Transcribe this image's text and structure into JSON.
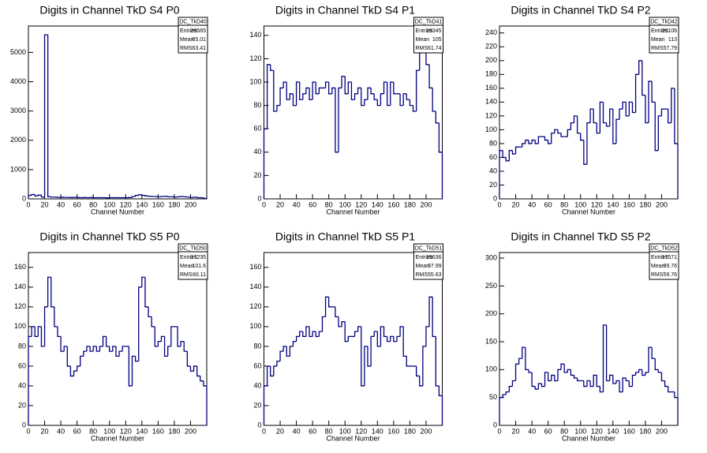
{
  "chart_data": [
    {
      "type": "histogram",
      "title": "Digits in Channel TkD S4 P0",
      "xlabel": "Channel Number",
      "color": "#000080",
      "bins": [
        0,
        4,
        8,
        12,
        16,
        20,
        24,
        28,
        32,
        36,
        40,
        44,
        48,
        52,
        56,
        60,
        64,
        68,
        72,
        76,
        80,
        84,
        88,
        92,
        96,
        100,
        104,
        108,
        112,
        116,
        120,
        124,
        128,
        132,
        136,
        140,
        144,
        148,
        152,
        156,
        160,
        164,
        168,
        172,
        176,
        180,
        184,
        188,
        192,
        196,
        200,
        204,
        208,
        212,
        216,
        220
      ],
      "counts": [
        120,
        150,
        100,
        130,
        60,
        5600,
        70,
        60,
        60,
        50,
        55,
        50,
        50,
        45,
        50,
        45,
        40,
        45,
        40,
        45,
        40,
        40,
        40,
        40,
        35,
        40,
        40,
        40,
        40,
        40,
        40,
        45,
        80,
        120,
        140,
        120,
        100,
        90,
        80,
        80,
        70,
        80,
        90,
        70,
        70,
        60,
        70,
        80,
        70,
        60,
        50,
        60,
        40,
        40,
        20
      ],
      "xlim": [
        0,
        220
      ],
      "ylim": [
        0,
        5900
      ],
      "xticks": [
        0,
        20,
        40,
        60,
        80,
        100,
        120,
        140,
        160,
        180,
        200
      ],
      "yticks": [
        0,
        1000,
        2000,
        3000,
        4000,
        5000
      ],
      "stats": {
        "name": "DC_TkD40",
        "rows": [
          {
            "label": "Entries",
            "value": 26565
          },
          {
            "label": "Mean",
            "value": 65.01
          },
          {
            "label": "RMS",
            "value": 63.41
          }
        ]
      }
    },
    {
      "type": "histogram",
      "title": "Digits in Channel TkD S4 P1",
      "xlabel": "Channel Number",
      "color": "#000080",
      "bins": [
        0,
        4,
        8,
        12,
        16,
        20,
        24,
        28,
        32,
        36,
        40,
        44,
        48,
        52,
        56,
        60,
        64,
        68,
        72,
        76,
        80,
        84,
        88,
        92,
        96,
        100,
        104,
        108,
        112,
        116,
        120,
        124,
        128,
        132,
        136,
        140,
        144,
        148,
        152,
        156,
        160,
        164,
        168,
        172,
        176,
        180,
        184,
        188,
        192,
        196,
        200,
        204,
        208,
        212,
        216,
        220
      ],
      "counts": [
        60,
        115,
        110,
        75,
        80,
        95,
        100,
        85,
        90,
        80,
        100,
        85,
        90,
        95,
        85,
        100,
        90,
        95,
        95,
        100,
        90,
        95,
        40,
        95,
        105,
        90,
        100,
        85,
        90,
        95,
        80,
        85,
        95,
        90,
        85,
        80,
        90,
        100,
        80,
        100,
        90,
        90,
        80,
        90,
        85,
        80,
        75,
        110,
        125,
        130,
        115,
        95,
        75,
        65,
        40
      ],
      "xlim": [
        0,
        220
      ],
      "ylim": [
        0,
        148
      ],
      "xticks": [
        0,
        20,
        40,
        60,
        80,
        100,
        120,
        140,
        160,
        180,
        200
      ],
      "yticks": [
        0,
        20,
        40,
        60,
        80,
        100,
        120,
        140
      ],
      "stats": {
        "name": "DC_TkD41",
        "rows": [
          {
            "label": "Entries",
            "value": 18345
          },
          {
            "label": "Mean",
            "value": 105
          },
          {
            "label": "RMS",
            "value": 61.74
          }
        ]
      }
    },
    {
      "type": "histogram",
      "title": "Digits in Channel TkD S4 P2",
      "xlabel": "Channel Number",
      "color": "#000080",
      "bins": [
        0,
        4,
        8,
        12,
        16,
        20,
        24,
        28,
        32,
        36,
        40,
        44,
        48,
        52,
        56,
        60,
        64,
        68,
        72,
        76,
        80,
        84,
        88,
        92,
        96,
        100,
        104,
        108,
        112,
        116,
        120,
        124,
        128,
        132,
        136,
        140,
        144,
        148,
        152,
        156,
        160,
        164,
        168,
        172,
        176,
        180,
        184,
        188,
        192,
        196,
        200,
        204,
        208,
        212,
        216,
        220
      ],
      "counts": [
        70,
        60,
        55,
        70,
        65,
        75,
        75,
        80,
        85,
        80,
        85,
        80,
        90,
        90,
        85,
        80,
        95,
        100,
        95,
        90,
        90,
        100,
        110,
        120,
        95,
        85,
        50,
        110,
        130,
        110,
        95,
        140,
        110,
        105,
        130,
        80,
        115,
        130,
        140,
        120,
        140,
        125,
        180,
        200,
        150,
        110,
        170,
        140,
        70,
        120,
        130,
        130,
        110,
        160,
        80
      ],
      "xlim": [
        0,
        220
      ],
      "ylim": [
        0,
        250
      ],
      "xticks": [
        0,
        20,
        40,
        60,
        80,
        100,
        120,
        140,
        160,
        180,
        200
      ],
      "yticks": [
        0,
        20,
        40,
        60,
        80,
        100,
        120,
        140,
        160,
        180,
        200,
        220,
        240
      ],
      "stats": {
        "name": "DC_TkD42",
        "rows": [
          {
            "label": "Entries",
            "value": 20106
          },
          {
            "label": "Mean",
            "value": 113
          },
          {
            "label": "RMS",
            "value": 57.79
          }
        ]
      }
    },
    {
      "type": "histogram",
      "title": "Digits in Channel TkD S5 P0",
      "xlabel": "Channel Number",
      "color": "#000080",
      "bins": [
        0,
        4,
        8,
        12,
        16,
        20,
        24,
        28,
        32,
        36,
        40,
        44,
        48,
        52,
        56,
        60,
        64,
        68,
        72,
        76,
        80,
        84,
        88,
        92,
        96,
        100,
        104,
        108,
        112,
        116,
        120,
        124,
        128,
        132,
        136,
        140,
        144,
        148,
        152,
        156,
        160,
        164,
        168,
        172,
        176,
        180,
        184,
        188,
        192,
        196,
        200,
        204,
        208,
        212,
        216,
        220
      ],
      "counts": [
        90,
        100,
        90,
        100,
        80,
        120,
        150,
        120,
        100,
        90,
        75,
        80,
        60,
        50,
        55,
        60,
        70,
        75,
        80,
        75,
        80,
        75,
        80,
        90,
        80,
        75,
        80,
        70,
        75,
        80,
        80,
        40,
        70,
        65,
        140,
        150,
        120,
        110,
        100,
        80,
        85,
        90,
        70,
        80,
        100,
        100,
        80,
        85,
        75,
        60,
        55,
        60,
        50,
        45,
        40
      ],
      "xlim": [
        0,
        220
      ],
      "ylim": [
        0,
        175
      ],
      "xticks": [
        0,
        20,
        40,
        60,
        80,
        100,
        120,
        140,
        160,
        180,
        200
      ],
      "yticks": [
        0,
        20,
        40,
        60,
        80,
        100,
        120,
        140,
        160
      ],
      "stats": {
        "name": "DC_TkD50",
        "rows": [
          {
            "label": "Entries",
            "value": 17235
          },
          {
            "label": "Mean",
            "value": 101.6
          },
          {
            "label": "RMS",
            "value": 60.11
          }
        ]
      }
    },
    {
      "type": "histogram",
      "title": "Digits in Channel TkD S5 P1",
      "xlabel": "Channel Number",
      "color": "#000080",
      "bins": [
        0,
        4,
        8,
        12,
        16,
        20,
        24,
        28,
        32,
        36,
        40,
        44,
        48,
        52,
        56,
        60,
        64,
        68,
        72,
        76,
        80,
        84,
        88,
        92,
        96,
        100,
        104,
        108,
        112,
        116,
        120,
        124,
        128,
        132,
        136,
        140,
        144,
        148,
        152,
        156,
        160,
        164,
        168,
        172,
        176,
        180,
        184,
        188,
        192,
        196,
        200,
        204,
        208,
        212,
        216,
        220
      ],
      "counts": [
        40,
        60,
        50,
        60,
        65,
        75,
        80,
        70,
        80,
        85,
        90,
        95,
        90,
        100,
        90,
        95,
        90,
        95,
        110,
        130,
        120,
        120,
        110,
        100,
        105,
        85,
        90,
        90,
        95,
        100,
        40,
        80,
        60,
        90,
        95,
        80,
        100,
        90,
        85,
        90,
        85,
        90,
        100,
        70,
        60,
        60,
        60,
        50,
        40,
        80,
        100,
        130,
        90,
        40,
        30
      ],
      "xlim": [
        0,
        220
      ],
      "ylim": [
        0,
        175
      ],
      "xticks": [
        0,
        20,
        40,
        60,
        80,
        100,
        120,
        140,
        160,
        180,
        200
      ],
      "yticks": [
        0,
        20,
        40,
        60,
        80,
        100,
        120,
        140,
        160
      ],
      "stats": {
        "name": "DC_TkD51",
        "rows": [
          {
            "label": "Entries",
            "value": 15636
          },
          {
            "label": "Mean",
            "value": 97.99
          },
          {
            "label": "RMS",
            "value": 55.63
          }
        ]
      }
    },
    {
      "type": "histogram",
      "title": "Digits in Channel TkD S5 P2",
      "xlabel": "Channel Number",
      "color": "#000080",
      "bins": [
        0,
        4,
        8,
        12,
        16,
        20,
        24,
        28,
        32,
        36,
        40,
        44,
        48,
        52,
        56,
        60,
        64,
        68,
        72,
        76,
        80,
        84,
        88,
        92,
        96,
        100,
        104,
        108,
        112,
        116,
        120,
        124,
        128,
        132,
        136,
        140,
        144,
        148,
        152,
        156,
        160,
        164,
        168,
        172,
        176,
        180,
        184,
        188,
        192,
        196,
        200,
        204,
        208,
        212,
        216,
        220
      ],
      "counts": [
        50,
        55,
        60,
        70,
        80,
        110,
        120,
        140,
        100,
        95,
        70,
        65,
        75,
        70,
        95,
        80,
        90,
        80,
        100,
        110,
        95,
        100,
        90,
        85,
        80,
        80,
        70,
        80,
        70,
        90,
        70,
        60,
        180,
        80,
        90,
        75,
        80,
        60,
        85,
        80,
        70,
        90,
        95,
        100,
        90,
        95,
        140,
        120,
        100,
        95,
        80,
        70,
        60,
        60,
        50
      ],
      "xlim": [
        0,
        220
      ],
      "ylim": [
        0,
        310
      ],
      "xticks": [
        0,
        20,
        40,
        60,
        80,
        100,
        120,
        140,
        160,
        180,
        200
      ],
      "yticks": [
        0,
        50,
        100,
        150,
        200,
        250,
        300
      ],
      "stats": {
        "name": "DC_TkD52",
        "rows": [
          {
            "label": "Entries",
            "value": 17571
          },
          {
            "label": "Mean",
            "value": 99.76
          },
          {
            "label": "RMS",
            "value": 59.76
          }
        ]
      }
    }
  ]
}
